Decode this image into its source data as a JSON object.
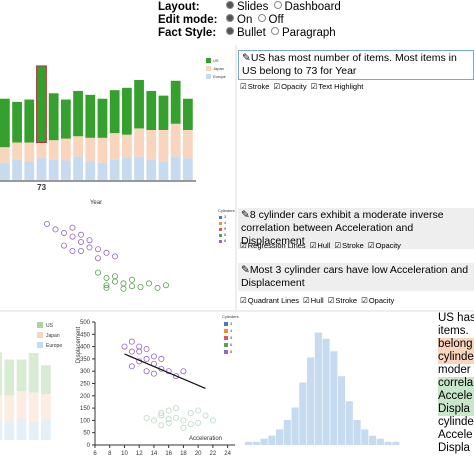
{
  "controls": [
    {
      "label": "Layout:",
      "options": [
        "Slides",
        "Dashboard"
      ],
      "selected": 0
    },
    {
      "label": "Edit mode:",
      "options": [
        "On",
        "Off"
      ],
      "selected": 0
    },
    {
      "label": "Fact Style:",
      "options": [
        "Bullet",
        "Paragraph"
      ],
      "selected": 0
    }
  ],
  "top_chart": {
    "type": "bar",
    "x_label": "Year",
    "categories": [
      null,
      null,
      null,
      "73",
      null,
      null,
      null,
      null,
      null,
      null,
      null,
      null,
      null,
      null,
      null,
      null
    ],
    "highlight": 3,
    "ylim": [
      0,
      160
    ],
    "series": [
      {
        "name": "Europe",
        "color": "#c6dbef",
        "values": [
          22,
          26,
          24,
          28,
          26,
          25,
          30,
          24,
          22,
          26,
          28,
          30,
          26,
          24,
          30,
          28
        ]
      },
      {
        "name": "Japan",
        "color": "#f9d5bd",
        "values": [
          20,
          22,
          24,
          20,
          25,
          28,
          26,
          30,
          32,
          34,
          30,
          36,
          38,
          40,
          42,
          36
        ]
      },
      {
        "name": "US",
        "color": "#36a02e",
        "values": [
          62,
          52,
          55,
          98,
          60,
          50,
          58,
          55,
          50,
          55,
          60,
          62,
          50,
          44,
          55,
          40
        ]
      }
    ]
  },
  "mid_scatter": {
    "type": "scatter",
    "legend_title": "Cylinders",
    "xlim": [
      6,
      26
    ],
    "ylim": [
      0,
      500
    ],
    "series": [
      {
        "name": "3",
        "color": "#4e79a7",
        "points": []
      },
      {
        "name": "4",
        "color": "#f28e2b",
        "points": []
      },
      {
        "name": "5",
        "color": "#e15759",
        "points": []
      },
      {
        "name": "6",
        "color": "#59a14f",
        "points": [
          [
            14,
            180
          ],
          [
            15,
            150
          ],
          [
            16,
            160
          ],
          [
            17,
            120
          ],
          [
            15,
            110
          ],
          [
            18,
            140
          ],
          [
            16,
            130
          ],
          [
            19,
            100
          ],
          [
            17,
            90
          ],
          [
            20,
            120
          ],
          [
            21,
            95
          ],
          [
            15,
            95
          ],
          [
            18,
            105
          ],
          [
            22,
            110
          ]
        ]
      },
      {
        "name": "8",
        "color": "#9467bd",
        "points": [
          [
            8,
            450
          ],
          [
            9,
            420
          ],
          [
            10,
            400
          ],
          [
            11,
            380
          ],
          [
            12,
            350
          ],
          [
            11,
            430
          ],
          [
            10,
            330
          ],
          [
            13,
            320
          ],
          [
            12,
            300
          ],
          [
            14,
            310
          ],
          [
            13,
            360
          ],
          [
            15,
            290
          ],
          [
            11,
            300
          ],
          [
            16,
            270
          ],
          [
            14,
            260
          ],
          [
            12,
            390
          ]
        ]
      }
    ]
  },
  "facts": [
    {
      "text": "US has most number of items. Most items in US belong to 73 for Year",
      "options": [
        "Stroke",
        "Opacity",
        "Text Highlight"
      ]
    },
    {
      "text": "8 cylinder cars exhibit a moderate inverse correlation between Acceleration and Displacement",
      "options": [
        "Regression Lines",
        "Hull",
        "Stroke",
        "Opacity"
      ]
    },
    {
      "text": "Most 3 cylinder cars have low Acceleration and Displacement",
      "options": [
        "Quadrant Lines",
        "Hull",
        "Stroke",
        "Opacity"
      ]
    }
  ],
  "bottom_bar": {
    "type": "bar",
    "legend": [
      "US",
      "Japan",
      "Europe"
    ],
    "ylim": [
      0,
      160
    ],
    "series": [
      {
        "name": "Europe",
        "color": "#c6dbef",
        "values": [
          24,
          28,
          26,
          30,
          26,
          28
        ]
      },
      {
        "name": "Japan",
        "color": "#f9d5bd",
        "values": [
          30,
          34,
          36,
          38,
          40,
          36
        ]
      },
      {
        "name": "US",
        "color": "#a8d5a0",
        "values": [
          55,
          60,
          50,
          44,
          55,
          40
        ]
      }
    ]
  },
  "bottom_scatter": {
    "type": "scatter",
    "x_label": "Acceleration",
    "y_label": "Displacement",
    "legend_title": "Cylinders",
    "legend": [
      "3",
      "4",
      "5",
      "6",
      "8"
    ],
    "xlim": [
      6,
      25
    ],
    "ylim": [
      0,
      500
    ],
    "xticks": [
      6,
      8,
      10,
      12,
      14,
      16,
      18,
      20,
      22,
      24
    ],
    "yticks": [
      0,
      50,
      100,
      150,
      200,
      250,
      300,
      350,
      400,
      450,
      500
    ],
    "regression": [
      [
        10,
        370
      ],
      [
        21,
        230
      ]
    ],
    "series": [
      {
        "name": "8",
        "color": "#9467bd",
        "points": [
          [
            10,
            400
          ],
          [
            11,
            420
          ],
          [
            12,
            380
          ],
          [
            13,
            350
          ],
          [
            12,
            340
          ],
          [
            14,
            360
          ],
          [
            11,
            320
          ],
          [
            13,
            300
          ],
          [
            15,
            310
          ],
          [
            14,
            330
          ],
          [
            16,
            300
          ],
          [
            12,
            400
          ],
          [
            13,
            390
          ],
          [
            15,
            350
          ],
          [
            17,
            280
          ],
          [
            18,
            300
          ],
          [
            14,
            290
          ],
          [
            11,
            380
          ]
        ]
      },
      {
        "name": "4",
        "color": "#bcd8c4",
        "points": [
          [
            14,
            100
          ],
          [
            15,
            120
          ],
          [
            16,
            90
          ],
          [
            17,
            110
          ],
          [
            18,
            100
          ],
          [
            19,
            130
          ],
          [
            15,
            80
          ],
          [
            16,
            140
          ],
          [
            20,
            90
          ],
          [
            21,
            120
          ],
          [
            17,
            150
          ],
          [
            13,
            110
          ],
          [
            18,
            70
          ],
          [
            22,
            100
          ],
          [
            19,
            85
          ],
          [
            16,
            105
          ],
          [
            15,
            130
          ],
          [
            20,
            140
          ]
        ]
      }
    ]
  },
  "histogram": {
    "type": "histogram",
    "color": "#c6dbef",
    "xlim": [
      6,
      26
    ],
    "ylim": [
      0,
      40
    ],
    "bins": [
      6,
      7,
      8,
      9,
      10,
      11,
      12,
      13,
      14,
      15,
      16,
      17,
      18,
      19,
      20,
      21,
      22,
      23,
      24,
      25,
      26
    ],
    "counts": [
      1,
      1,
      2,
      3,
      5,
      8,
      12,
      20,
      28,
      36,
      34,
      30,
      22,
      14,
      8,
      5,
      3,
      2,
      1,
      1
    ]
  },
  "partial_text": [
    "US has",
    "items.",
    "belong",
    "cylinde",
    "moder",
    "correla",
    "Accele",
    "Displa",
    "cylinde",
    "Accele",
    "Displa"
  ]
}
